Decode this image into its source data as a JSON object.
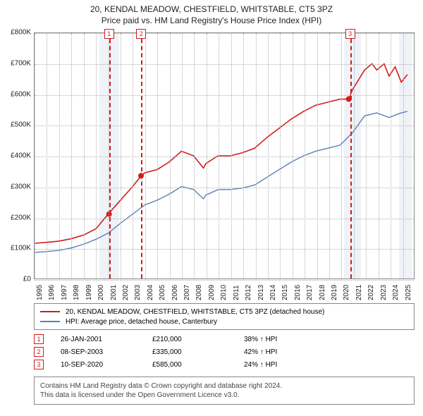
{
  "title_line1": "20, KENDAL MEADOW, CHESTFIELD, WHITSTABLE, CT5 3PZ",
  "title_line2": "Price paid vs. HM Land Registry's House Price Index (HPI)",
  "chart": {
    "type": "line",
    "background_color": "#ffffff",
    "grid_color": "#b0b0b0",
    "axis_color": "#888888",
    "x_domain": [
      1995,
      2026
    ],
    "y_domain": [
      0,
      800000
    ],
    "y_ticks": [
      0,
      100000,
      200000,
      300000,
      400000,
      500000,
      600000,
      700000,
      800000
    ],
    "y_tick_labels": [
      "£0",
      "£100K",
      "£200K",
      "£300K",
      "£400K",
      "£500K",
      "£600K",
      "£700K",
      "£800K"
    ],
    "x_ticks": [
      1995,
      1996,
      1997,
      1998,
      1999,
      2000,
      2001,
      2002,
      2003,
      2004,
      2005,
      2006,
      2007,
      2008,
      2009,
      2010,
      2011,
      2012,
      2013,
      2014,
      2015,
      2016,
      2017,
      2018,
      2019,
      2020,
      2021,
      2022,
      2023,
      2024,
      2025
    ],
    "tick_fontsize": 10,
    "hatch_bands": [
      {
        "from": 2000.3,
        "to": 2001.9,
        "color": "#e8edf3"
      },
      {
        "from": 2020.2,
        "to": 2021.6,
        "color": "#e8edf3"
      },
      {
        "from": 2024.7,
        "to": 2025.7,
        "color": "#e8edf3"
      }
    ],
    "series": [
      {
        "name": "property",
        "label": "20, KENDAL MEADOW, CHESTFIELD, WHITSTABLE, CT5 3PZ (detached house)",
        "color": "#d01c1c",
        "line_width": 1.6,
        "data": [
          [
            1995,
            115000
          ],
          [
            1996,
            118000
          ],
          [
            1997,
            122000
          ],
          [
            1998,
            130000
          ],
          [
            1999,
            142000
          ],
          [
            2000,
            162000
          ],
          [
            2001,
            210000
          ],
          [
            2002,
            255000
          ],
          [
            2003,
            300000
          ],
          [
            2003.7,
            335000
          ],
          [
            2004,
            345000
          ],
          [
            2005,
            355000
          ],
          [
            2006,
            380000
          ],
          [
            2007,
            415000
          ],
          [
            2008,
            400000
          ],
          [
            2008.8,
            360000
          ],
          [
            2009,
            375000
          ],
          [
            2010,
            400000
          ],
          [
            2011,
            400000
          ],
          [
            2012,
            410000
          ],
          [
            2013,
            425000
          ],
          [
            2014,
            460000
          ],
          [
            2015,
            490000
          ],
          [
            2016,
            520000
          ],
          [
            2017,
            545000
          ],
          [
            2018,
            565000
          ],
          [
            2019,
            575000
          ],
          [
            2020,
            585000
          ],
          [
            2020.7,
            585000
          ],
          [
            2021,
            615000
          ],
          [
            2022,
            680000
          ],
          [
            2022.6,
            700000
          ],
          [
            2023,
            680000
          ],
          [
            2023.6,
            700000
          ],
          [
            2024,
            660000
          ],
          [
            2024.5,
            690000
          ],
          [
            2025,
            640000
          ],
          [
            2025.5,
            665000
          ]
        ]
      },
      {
        "name": "hpi",
        "label": "HPI: Average price, detached house, Canterbury",
        "color": "#5a7fb5",
        "line_width": 1.4,
        "data": [
          [
            1995,
            85000
          ],
          [
            1996,
            88000
          ],
          [
            1997,
            92000
          ],
          [
            1998,
            100000
          ],
          [
            1999,
            112000
          ],
          [
            2000,
            128000
          ],
          [
            2001,
            148000
          ],
          [
            2002,
            180000
          ],
          [
            2003,
            210000
          ],
          [
            2004,
            240000
          ],
          [
            2005,
            255000
          ],
          [
            2006,
            275000
          ],
          [
            2007,
            300000
          ],
          [
            2008,
            290000
          ],
          [
            2008.8,
            260000
          ],
          [
            2009,
            272000
          ],
          [
            2010,
            290000
          ],
          [
            2011,
            290000
          ],
          [
            2012,
            295000
          ],
          [
            2013,
            305000
          ],
          [
            2014,
            330000
          ],
          [
            2015,
            355000
          ],
          [
            2016,
            380000
          ],
          [
            2017,
            400000
          ],
          [
            2018,
            415000
          ],
          [
            2019,
            425000
          ],
          [
            2020,
            435000
          ],
          [
            2021,
            475000
          ],
          [
            2022,
            530000
          ],
          [
            2023,
            540000
          ],
          [
            2024,
            525000
          ],
          [
            2025,
            540000
          ],
          [
            2025.5,
            545000
          ]
        ]
      }
    ],
    "markers": [
      {
        "x": 2001.07,
        "y": 210000,
        "color": "#d01c1c",
        "size": 4
      },
      {
        "x": 2003.69,
        "y": 335000,
        "color": "#d01c1c",
        "size": 4
      },
      {
        "x": 2020.7,
        "y": 585000,
        "color": "#d01c1c",
        "size": 4
      }
    ],
    "events": [
      {
        "n": "1",
        "x": 2001.07,
        "line_color": "#d01c1c"
      },
      {
        "n": "2",
        "x": 2003.69,
        "line_color": "#d01c1c"
      },
      {
        "n": "3",
        "x": 2020.7,
        "line_color": "#d01c1c"
      }
    ]
  },
  "legend": {
    "items": [
      {
        "color": "#d01c1c",
        "label": "20, KENDAL MEADOW, CHESTFIELD, WHITSTABLE, CT5 3PZ (detached house)"
      },
      {
        "color": "#5a7fb5",
        "label": "HPI: Average price, detached house, Canterbury"
      }
    ]
  },
  "events_table": {
    "rows": [
      {
        "n": "1",
        "date": "26-JAN-2001",
        "price": "£210,000",
        "delta": "38% ↑ HPI"
      },
      {
        "n": "2",
        "date": "08-SEP-2003",
        "price": "£335,000",
        "delta": "42% ↑ HPI"
      },
      {
        "n": "3",
        "date": "10-SEP-2020",
        "price": "£585,000",
        "delta": "24% ↑ HPI"
      }
    ],
    "box_color": "#d01c1c"
  },
  "footer": {
    "line1": "Contains HM Land Registry data © Crown copyright and database right 2024.",
    "line2": "This data is licensed under the Open Government Licence v3.0."
  }
}
